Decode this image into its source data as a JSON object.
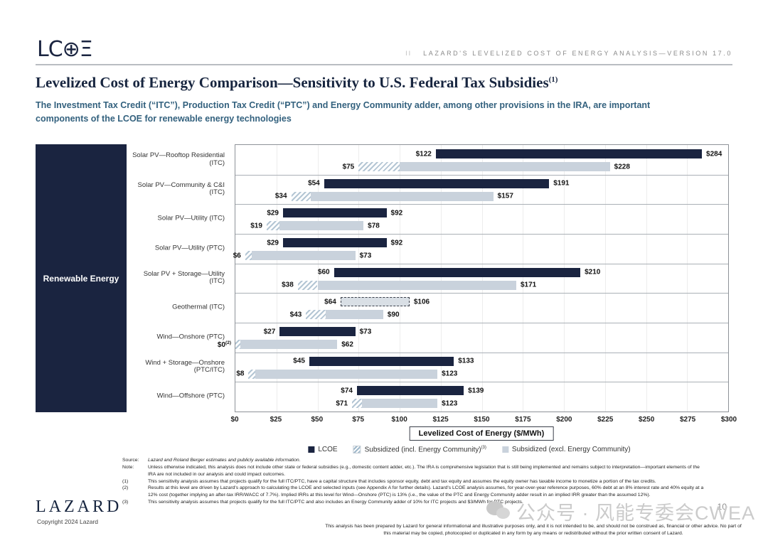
{
  "header": {
    "logo_text": "LC⊕Ξ",
    "section": "II",
    "banner": "LAZARD'S LEVELIZED COST OF ENERGY ANALYSIS—VERSION 17.0"
  },
  "page": {
    "title": "Levelized Cost of Energy Comparison—Sensitivity to U.S. Federal Tax Subsidies",
    "title_superscript": "(1)",
    "subtitle": "The Investment Tax Credit (“ITC”), Production Tax Credit (“PTC”) and Energy Community adder, among other provisions in the IRA, are important components of the LCOE for renewable energy technologies"
  },
  "chart_data": {
    "type": "bar",
    "orientation": "horizontal-range",
    "group_label": "Renewable Energy",
    "xlabel": "Levelized Cost of Energy ($/MWh)",
    "xlim": [
      0,
      300
    ],
    "x_ticks": [
      "$0",
      "$25",
      "$50",
      "$75",
      "$100",
      "$125",
      "$150",
      "$175",
      "$200",
      "$225",
      "$250",
      "$275",
      "$300"
    ],
    "legend": [
      {
        "name": "LCOE",
        "superscript": "",
        "style": "solid-dark"
      },
      {
        "name": "Subsidized (incl. Energy Community)",
        "superscript": "(3)",
        "style": "hatched"
      },
      {
        "name": "Subsidized (excl. Energy Community)",
        "superscript": "",
        "style": "solid-light"
      }
    ],
    "colors": {
      "lcoe_bar": "#1a2440",
      "subsidized_bar": "#c9d2dc",
      "hatch_stripe": "#b4c6d4",
      "sidebar": "#1a2440",
      "title": "#17253f",
      "subtitle": "#33617e"
    },
    "rows": [
      {
        "category": "Solar PV—Rooftop Residential (ITC)",
        "lcoe_low": 122,
        "lcoe_high": 284,
        "lcoe_style": "solid",
        "sub_low": 75,
        "sub_incl_boundary": 100,
        "sub_high": 228,
        "sub_low_superscript": ""
      },
      {
        "category": "Solar PV—Community & C&I (ITC)",
        "lcoe_low": 54,
        "lcoe_high": 191,
        "lcoe_style": "solid",
        "sub_low": 34,
        "sub_incl_boundary": 46,
        "sub_high": 157,
        "sub_low_superscript": ""
      },
      {
        "category": "Solar PV—Utility (ITC)",
        "lcoe_low": 29,
        "lcoe_high": 92,
        "lcoe_style": "solid",
        "sub_low": 19,
        "sub_incl_boundary": 27,
        "sub_high": 78,
        "sub_low_superscript": ""
      },
      {
        "category": "Solar PV—Utility (PTC)",
        "lcoe_low": 29,
        "lcoe_high": 92,
        "lcoe_style": "solid",
        "sub_low": 6,
        "sub_incl_boundary": 10,
        "sub_high": 73,
        "sub_low_superscript": ""
      },
      {
        "category": "Solar PV + Storage—Utility (ITC)",
        "lcoe_low": 60,
        "lcoe_high": 210,
        "lcoe_style": "solid",
        "sub_low": 38,
        "sub_incl_boundary": 50,
        "sub_high": 171,
        "sub_low_superscript": ""
      },
      {
        "category": "Geothermal (ITC)",
        "lcoe_low": 64,
        "lcoe_high": 106,
        "lcoe_style": "dashed",
        "sub_low": 43,
        "sub_incl_boundary": 55,
        "sub_high": 90,
        "sub_low_superscript": ""
      },
      {
        "category": "Wind—Onshore (PTC)",
        "lcoe_low": 27,
        "lcoe_high": 73,
        "lcoe_style": "solid",
        "sub_low": 0,
        "sub_incl_boundary": 3,
        "sub_high": 62,
        "sub_low_superscript": "(2)"
      },
      {
        "category": "Wind + Storage—Onshore (PTC/ITC)",
        "lcoe_low": 45,
        "lcoe_high": 133,
        "lcoe_style": "solid",
        "sub_low": 8,
        "sub_incl_boundary": 12,
        "sub_high": 123,
        "sub_low_superscript": ""
      },
      {
        "category": "Wind—Offshore (PTC)",
        "lcoe_low": 74,
        "lcoe_high": 139,
        "lcoe_style": "solid",
        "sub_low": 71,
        "sub_incl_boundary": 77,
        "sub_high": 123,
        "sub_low_superscript": ""
      }
    ]
  },
  "footnotes": [
    {
      "label": "Source:",
      "italic": true,
      "text": "Lazard and Roland Berger estimates and publicly available information."
    },
    {
      "label": "Note:",
      "italic": false,
      "text": "Unless otherwise indicated, this analysis does not include other state or federal subsidies (e.g., domestic content adder, etc.). The IRA is comprehensive legislation that is still being implemented and remains subject to interpretation—important elements of the IRA are not included in our analysis and could impact outcomes."
    },
    {
      "label": "(1)",
      "italic": false,
      "text": "This sensitivity analysis assumes that projects qualify for the full ITC/PTC, have a capital structure that includes sponsor equity, debt and tax equity and assumes the equity owner has taxable income to monetize a portion of the tax credits."
    },
    {
      "label": "(2)",
      "italic": false,
      "text": "Results at this level are driven by Lazard's approach to calculating the LCOE and selected inputs (see Appendix A for further details). Lazard's LCOE analysis assumes, for year-over-year reference purposes, 60% debt at an 8% interest rate and 40% equity at a 12% cost (together implying an after-tax IRR/WACC of 7.7%). Implied IRRs at this level for Wind—Onshore (PTC) is 13% (i.e., the value of the PTC and Energy Community adder result in an implied IRR greater than the assumed 12%)."
    },
    {
      "label": "(3)",
      "italic": false,
      "text": "This sensitivity analysis assumes that projects qualify for the full ITC/PTC and also includes an Energy Community adder of 10% for ITC projects and $3/MWh for PTC projects."
    }
  ],
  "footer": {
    "lazard_logo": "LAZARD",
    "copyright": "Copyright 2024 Lazard",
    "page_number": "10",
    "disclaimer": "This analysis has been prepared by Lazard for general informational and illustrative purposes only, and it is not intended to be, and should not be construed as, financial or other advice. No part of this material may be copied, photocopied or duplicated in any form by any means or redistributed without the prior written consent of Lazard."
  },
  "watermark": {
    "text": "公众号 · 风能专委会CWEA"
  }
}
